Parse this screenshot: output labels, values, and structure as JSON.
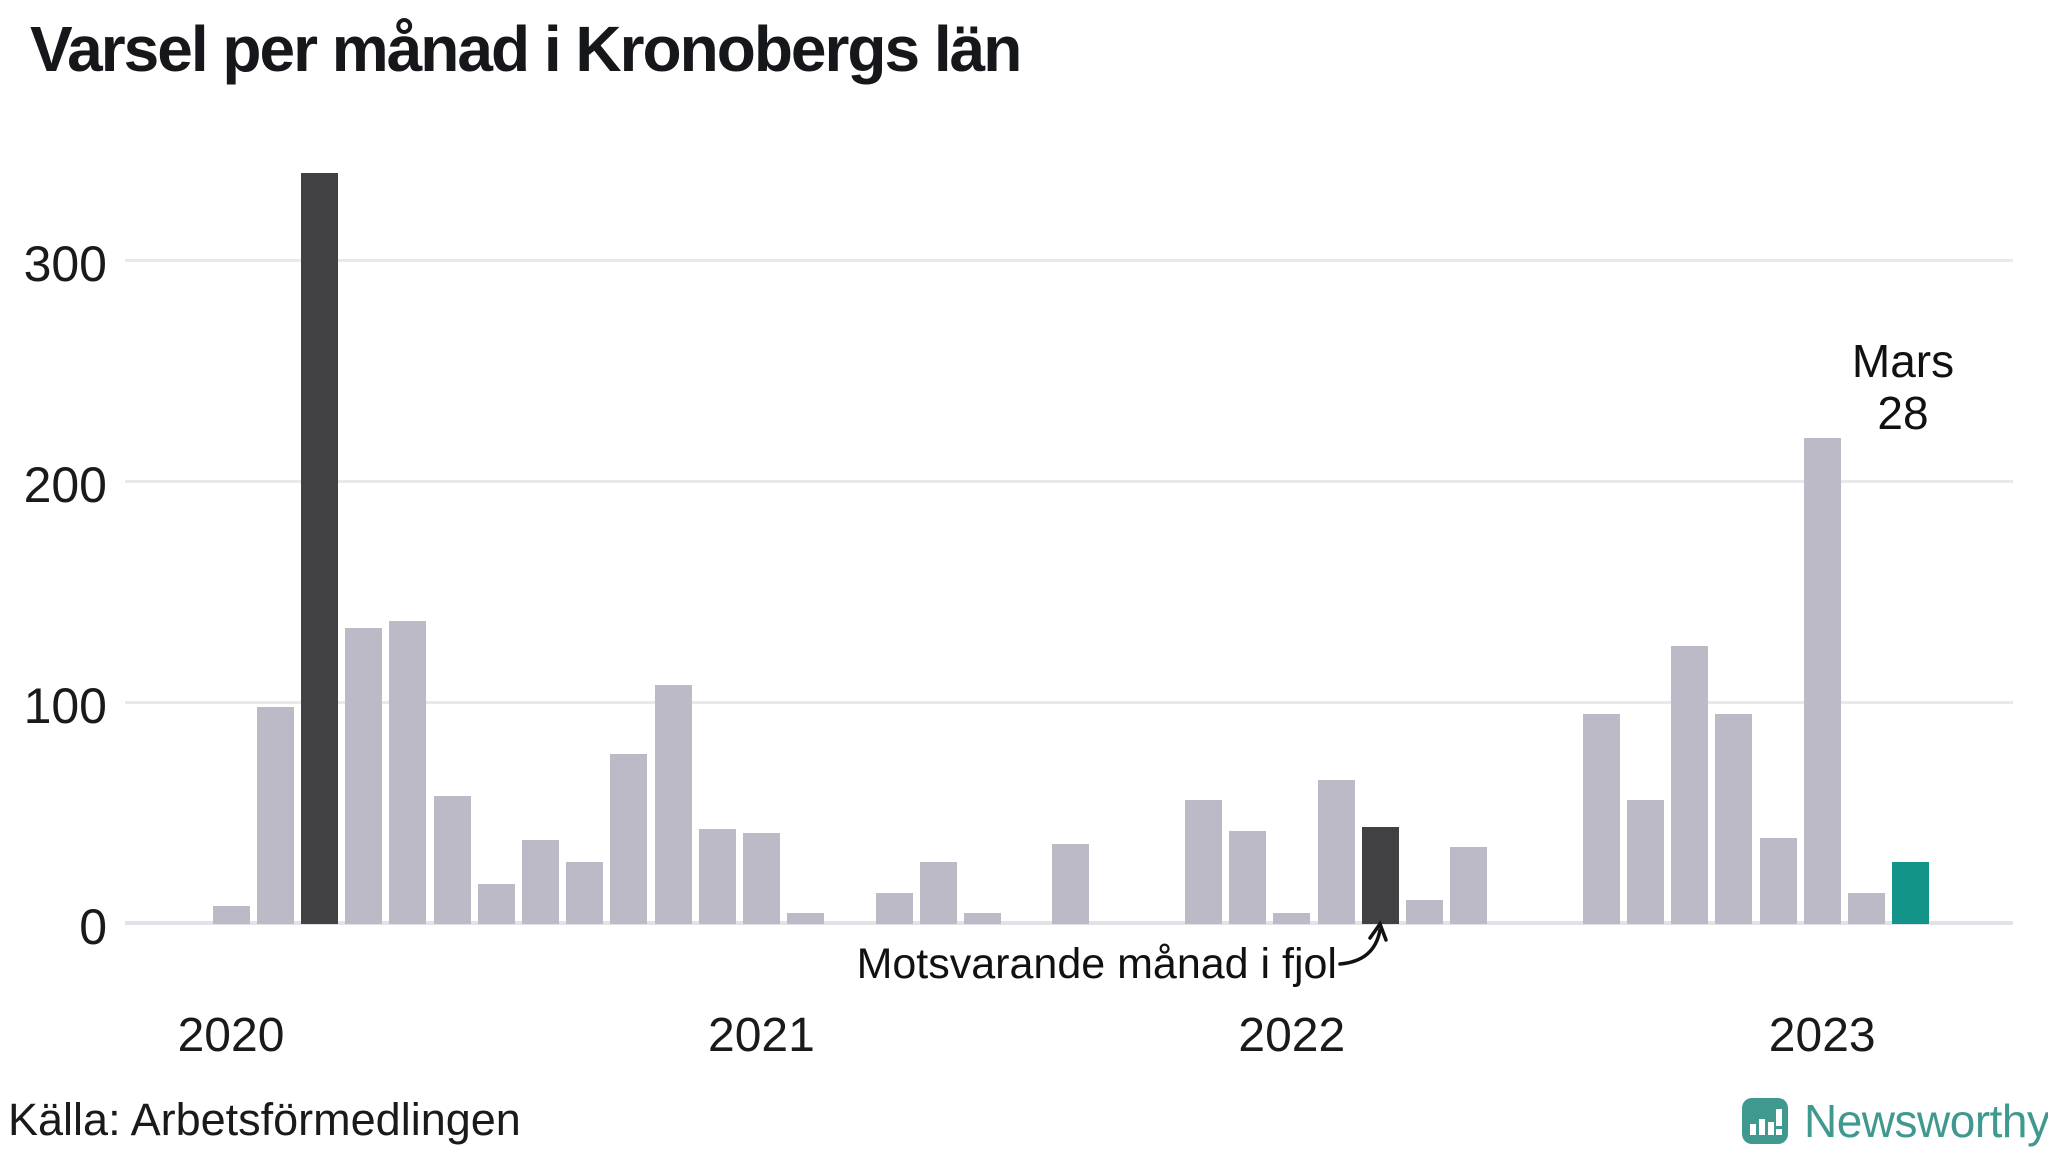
{
  "title": "Varsel per månad i Kronobergs län",
  "footer": {
    "source": "Källa: Arbetsförmedlingen",
    "brand_name": "Newsworthy"
  },
  "annotations": {
    "latest_line1": "Mars",
    "latest_line2": "28",
    "comparison_label": "Motsvarande månad i fjol"
  },
  "colors": {
    "bar": "#bdbac7",
    "bar_dark": "#414043",
    "bar_accent": "#129489",
    "brand": "#40998f",
    "grid": "#e8e8ed",
    "axis_line": "#e2e2e8"
  },
  "y_axis": {
    "ticks": [
      0,
      100,
      200,
      300
    ]
  },
  "x_axis": {
    "ticks": [
      "2020",
      "2021",
      "2022",
      "2023"
    ]
  },
  "chart_data": {
    "type": "bar",
    "title": "Varsel per månad i Kronobergs län",
    "xlabel": "",
    "ylabel": "",
    "ylim": [
      0,
      350
    ],
    "grid": "horizontal",
    "legend_position": "none",
    "highlight_dark_months": [
      "2020-03",
      "2022-03"
    ],
    "highlight_accent_month": "2023-03",
    "points": [
      {
        "month": "2020-01",
        "value": 8,
        "style": "normal"
      },
      {
        "month": "2020-02",
        "value": 98,
        "style": "normal"
      },
      {
        "month": "2020-03",
        "value": 340,
        "style": "dark"
      },
      {
        "month": "2020-04",
        "value": 134,
        "style": "normal"
      },
      {
        "month": "2020-05",
        "value": 137,
        "style": "normal"
      },
      {
        "month": "2020-06",
        "value": 58,
        "style": "normal"
      },
      {
        "month": "2020-07",
        "value": 18,
        "style": "normal"
      },
      {
        "month": "2020-08",
        "value": 38,
        "style": "normal"
      },
      {
        "month": "2020-09",
        "value": 28,
        "style": "normal"
      },
      {
        "month": "2020-10",
        "value": 77,
        "style": "normal"
      },
      {
        "month": "2020-11",
        "value": 108,
        "style": "normal"
      },
      {
        "month": "2020-12",
        "value": 43,
        "style": "normal"
      },
      {
        "month": "2021-01",
        "value": 41,
        "style": "normal"
      },
      {
        "month": "2021-02",
        "value": 5,
        "style": "normal"
      },
      {
        "month": "2021-03",
        "value": 0,
        "style": "normal"
      },
      {
        "month": "2021-04",
        "value": 14,
        "style": "normal"
      },
      {
        "month": "2021-05",
        "value": 28,
        "style": "normal"
      },
      {
        "month": "2021-06",
        "value": 5,
        "style": "normal"
      },
      {
        "month": "2021-07",
        "value": 0,
        "style": "normal"
      },
      {
        "month": "2021-08",
        "value": 36,
        "style": "normal"
      },
      {
        "month": "2021-09",
        "value": 0,
        "style": "normal"
      },
      {
        "month": "2021-10",
        "value": 0,
        "style": "normal"
      },
      {
        "month": "2021-11",
        "value": 56,
        "style": "normal"
      },
      {
        "month": "2021-12",
        "value": 42,
        "style": "normal"
      },
      {
        "month": "2022-01",
        "value": 5,
        "style": "normal"
      },
      {
        "month": "2022-02",
        "value": 65,
        "style": "normal"
      },
      {
        "month": "2022-03",
        "value": 44,
        "style": "dark"
      },
      {
        "month": "2022-04",
        "value": 11,
        "style": "normal"
      },
      {
        "month": "2022-05",
        "value": 35,
        "style": "normal"
      },
      {
        "month": "2022-06",
        "value": 0,
        "style": "normal"
      },
      {
        "month": "2022-07",
        "value": 0,
        "style": "normal"
      },
      {
        "month": "2022-08",
        "value": 95,
        "style": "normal"
      },
      {
        "month": "2022-09",
        "value": 56,
        "style": "normal"
      },
      {
        "month": "2022-10",
        "value": 126,
        "style": "normal"
      },
      {
        "month": "2022-11",
        "value": 95,
        "style": "normal"
      },
      {
        "month": "2022-12",
        "value": 39,
        "style": "normal"
      },
      {
        "month": "2023-01",
        "value": 220,
        "style": "normal"
      },
      {
        "month": "2023-02",
        "value": 14,
        "style": "normal"
      },
      {
        "month": "2023-03",
        "value": 28,
        "style": "accent"
      }
    ]
  }
}
